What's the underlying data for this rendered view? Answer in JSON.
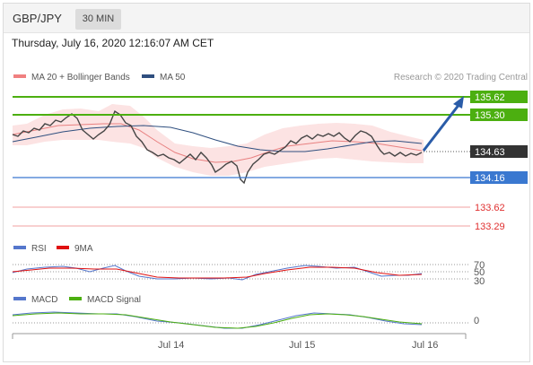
{
  "header": {
    "symbol": "GBP/JPY",
    "timeframe": "30 MIN"
  },
  "datetime": "Thursday, July 16, 2020 12:16:07 AM CET",
  "main_chart": {
    "legend": [
      {
        "label": "MA 20 + Bollinger Bands",
        "color": "#f08080"
      },
      {
        "label": "MA 50",
        "color": "#2f4f7f"
      }
    ],
    "credit": "Research © 2020 Trading Central",
    "levels": [
      {
        "label": "135.62",
        "color": "#4caf10",
        "kind": "resistance"
      },
      {
        "label": "135.30",
        "color": "#4caf10",
        "kind": "resistance"
      },
      {
        "label": "134.63",
        "color": "#333333",
        "kind": "current"
      },
      {
        "label": "134.16",
        "color": "#3a78d0",
        "kind": "pivot"
      },
      {
        "label": "133.62",
        "color": "#e03030",
        "kind": "support"
      },
      {
        "label": "133.29",
        "color": "#e03030",
        "kind": "support"
      }
    ],
    "forecast_arrow_color": "#2a5ca8"
  },
  "rsi_panel": {
    "legend": [
      {
        "label": "RSI",
        "color": "#5577cc"
      },
      {
        "label": "9MA",
        "color": "#e01010"
      }
    ],
    "levels": [
      "70",
      "50",
      "30"
    ]
  },
  "macd_panel": {
    "legend": [
      {
        "label": "MACD",
        "color": "#5577cc"
      },
      {
        "label": "MACD Signal",
        "color": "#4caf10"
      }
    ],
    "zero_label": "0"
  },
  "x_axis": {
    "labels": [
      "Jul 14",
      "Jul 15",
      "Jul 16"
    ]
  }
}
